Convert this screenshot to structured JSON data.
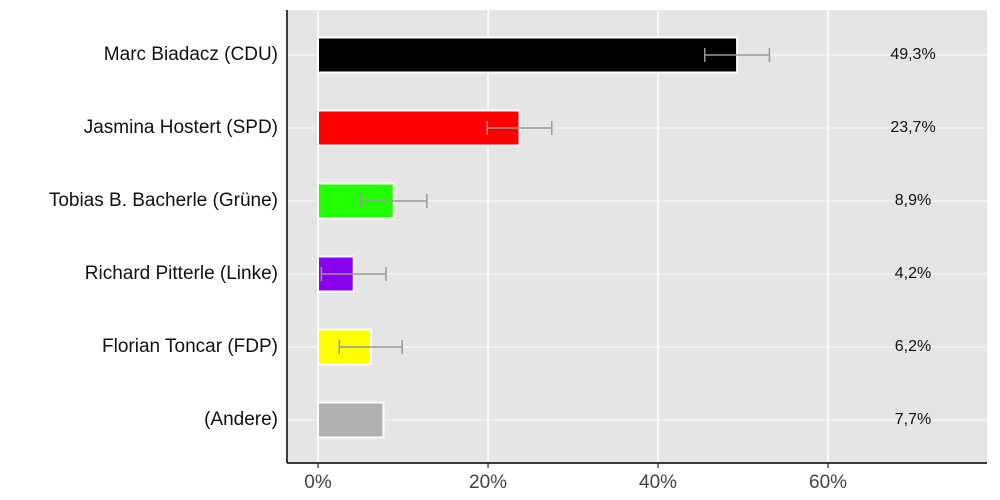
{
  "chart_data": {
    "type": "bar",
    "orientation": "horizontal",
    "categories": [
      "Marc Biadacz (CDU)",
      "Jasmina Hostert (SPD)",
      "Tobias B. Bacherle (Grüne)",
      "Richard Pitterle (Linke)",
      "Florian Toncar (FDP)",
      "(Andere)"
    ],
    "values": [
      49.3,
      23.7,
      8.9,
      4.2,
      6.2,
      7.7
    ],
    "value_labels": [
      "49,3%",
      "23,7%",
      "8,9%",
      "4,2%",
      "6,2%",
      "7,7%"
    ],
    "errors": [
      3.8,
      3.8,
      3.9,
      3.8,
      3.7,
      null
    ],
    "colors": [
      "#000000",
      "#ff0000",
      "#22ff00",
      "#8800ee",
      "#ffff00",
      "#b0b0b0"
    ],
    "xlim": [
      -3.65,
      78.7
    ],
    "xticks": [
      {
        "value": 0,
        "label": "0%"
      },
      {
        "value": 20,
        "label": "20%"
      },
      {
        "value": 40,
        "label": "40%"
      },
      {
        "value": 60,
        "label": "60%"
      }
    ],
    "grid": true
  }
}
